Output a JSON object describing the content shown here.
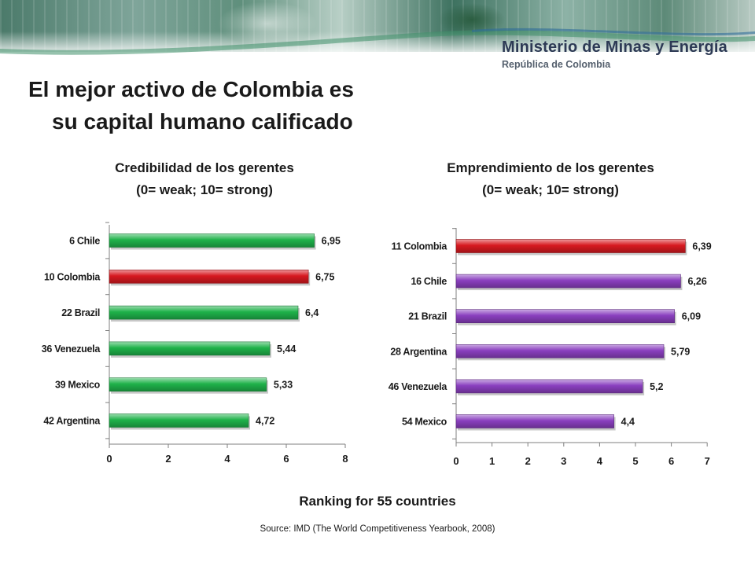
{
  "header": {
    "ministry_name": "Ministerio de Minas y Energía",
    "ministry_country": "República de Colombia"
  },
  "page": {
    "title_line1": "El mejor activo de Colombia es",
    "title_line2": "su capital humano calificado"
  },
  "footer": {
    "ranking_note": "Ranking for 55 countries",
    "source": "Source: IMD (The World Competitiveness Yearbook, 2008)"
  },
  "colors": {
    "green_bar": "#1fb24a",
    "red_bar": "#d71920",
    "purple_bar": "#8a3fbf",
    "title_text": "#1a1a1a",
    "ministry_text": "#2d3a55"
  },
  "chart_data": [
    {
      "type": "bar",
      "orientation": "horizontal",
      "title_line1": "Credibilidad de los gerentes",
      "title_line2": "(0= weak; 10= strong)",
      "categories": [
        "6 Chile",
        "10 Colombia",
        "22 Brazil",
        "36 Venezuela",
        "39 Mexico",
        "42 Argentina"
      ],
      "values": [
        6.95,
        6.75,
        6.4,
        5.44,
        5.33,
        4.72
      ],
      "value_labels": [
        "6,95",
        "6,75",
        "6,4",
        "5,44",
        "5,33",
        "4,72"
      ],
      "bar_colors": [
        "#1fb24a",
        "#d71920",
        "#1fb24a",
        "#1fb24a",
        "#1fb24a",
        "#1fb24a"
      ],
      "xlim": [
        0,
        8
      ],
      "xticks": [
        0,
        2,
        4,
        6,
        8
      ],
      "xtick_labels": [
        "0",
        "2",
        "4",
        "6",
        "8"
      ],
      "grid": false,
      "legend": false
    },
    {
      "type": "bar",
      "orientation": "horizontal",
      "title_line1": "Emprendimiento de los gerentes",
      "title_line2": "(0= weak; 10= strong)",
      "categories": [
        "11 Colombia",
        "16 Chile",
        "21 Brazil",
        "28 Argentina",
        "46 Venezuela",
        "54 Mexico"
      ],
      "values": [
        6.39,
        6.26,
        6.09,
        5.79,
        5.2,
        4.4
      ],
      "value_labels": [
        "6,39",
        "6,26",
        "6,09",
        "5,79",
        "5,2",
        "4,4"
      ],
      "bar_colors": [
        "#d71920",
        "#8a3fbf",
        "#8a3fbf",
        "#8a3fbf",
        "#8a3fbf",
        "#8a3fbf"
      ],
      "xlim": [
        0,
        7
      ],
      "xticks": [
        0,
        1,
        2,
        3,
        4,
        5,
        6,
        7
      ],
      "xtick_labels": [
        "0",
        "1",
        "2",
        "3",
        "4",
        "5",
        "6",
        "7"
      ],
      "grid": false,
      "legend": false
    }
  ]
}
